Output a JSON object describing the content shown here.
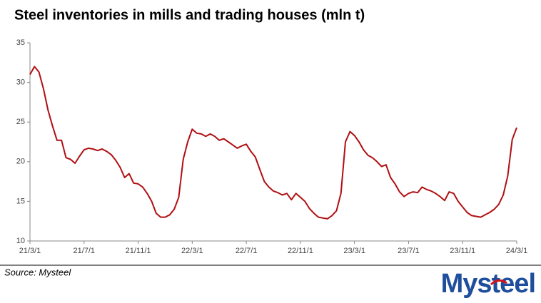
{
  "chart_data": {
    "type": "line",
    "title": "Steel inventories in mills and trading houses (mln t)",
    "source": "Source: Mysteel",
    "logo": "Mysteel",
    "categories": [
      "21/3/1",
      null,
      null,
      null,
      null,
      null,
      null,
      null,
      null,
      null,
      null,
      null,
      "21/7/1",
      null,
      null,
      null,
      null,
      null,
      null,
      null,
      null,
      null,
      null,
      null,
      "21/11/1",
      null,
      null,
      null,
      null,
      null,
      null,
      null,
      null,
      null,
      null,
      null,
      "22/3/1",
      null,
      null,
      null,
      null,
      null,
      null,
      null,
      null,
      null,
      null,
      null,
      "22/7/1",
      null,
      null,
      null,
      null,
      null,
      null,
      null,
      null,
      null,
      null,
      null,
      "22/11/1",
      null,
      null,
      null,
      null,
      null,
      null,
      null,
      null,
      null,
      null,
      null,
      "23/3/1",
      null,
      null,
      null,
      null,
      null,
      null,
      null,
      null,
      null,
      null,
      null,
      "23/7/1",
      null,
      null,
      null,
      null,
      null,
      null,
      null,
      null,
      null,
      null,
      null,
      "23/11/1",
      null,
      null,
      null,
      null,
      null,
      null,
      null,
      null,
      null,
      null,
      null,
      "24/3/1"
    ],
    "series": [
      {
        "name": "Steel inventories",
        "color": "#b00f12",
        "values": [
          31.0,
          32.0,
          31.3,
          29.2,
          26.5,
          24.5,
          22.7,
          22.7,
          20.5,
          20.3,
          19.8,
          20.7,
          21.5,
          21.7,
          21.6,
          21.4,
          21.6,
          21.3,
          20.9,
          20.2,
          19.3,
          18.0,
          18.5,
          17.3,
          17.2,
          16.8,
          16.0,
          15.0,
          13.5,
          13.0,
          13.0,
          13.3,
          14.0,
          15.5,
          20.3,
          22.5,
          24.1,
          23.6,
          23.5,
          23.2,
          23.5,
          23.2,
          22.7,
          22.9,
          22.5,
          22.1,
          21.7,
          22.0,
          22.2,
          21.3,
          20.6,
          19.0,
          17.5,
          16.8,
          16.3,
          16.1,
          15.8,
          16.0,
          15.2,
          16.0,
          15.5,
          15.0,
          14.1,
          13.5,
          13.0,
          12.9,
          12.8,
          13.2,
          13.8,
          16.0,
          22.5,
          23.8,
          23.3,
          22.5,
          21.5,
          20.8,
          20.5,
          20.0,
          19.4,
          19.6,
          18.0,
          17.2,
          16.2,
          15.6,
          16.0,
          16.2,
          16.1,
          16.8,
          16.5,
          16.3,
          16.0,
          15.6,
          15.1,
          16.2,
          16.0,
          15.0,
          14.3,
          13.6,
          13.2,
          13.1,
          13.0,
          13.3,
          13.6,
          14.0,
          14.6,
          15.8,
          18.2,
          22.8,
          24.3
        ]
      }
    ],
    "ylim": [
      10,
      35
    ],
    "yticks": [
      10,
      15,
      20,
      25,
      30,
      35
    ],
    "grid": false
  }
}
